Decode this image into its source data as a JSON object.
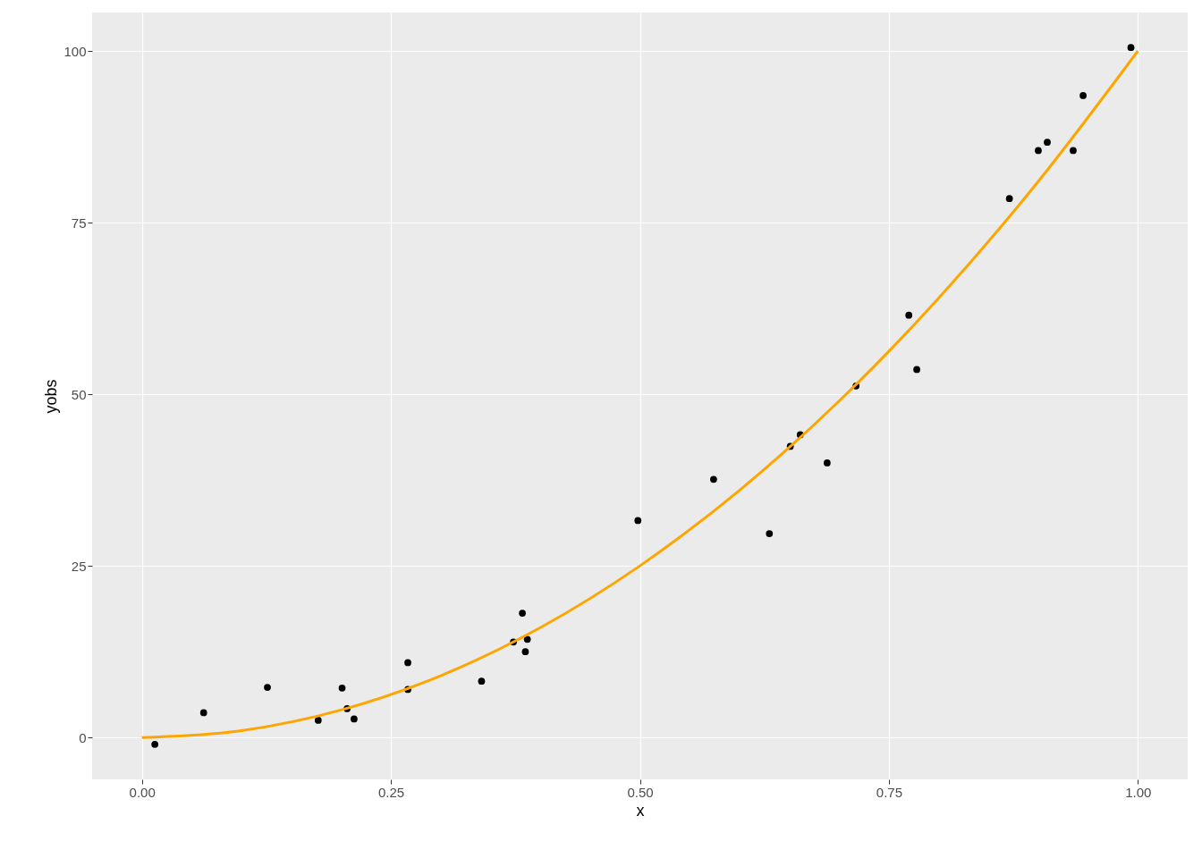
{
  "chart_data": {
    "type": "scatter",
    "xlabel": "x",
    "ylabel": "yobs",
    "xlim": [
      -0.05,
      1.05
    ],
    "ylim": [
      -6.1,
      105.6
    ],
    "xticks": [
      {
        "value": 0,
        "label": "0.00"
      },
      {
        "value": 0.25,
        "label": "0.25"
      },
      {
        "value": 0.5,
        "label": "0.50"
      },
      {
        "value": 0.75,
        "label": "0.75"
      },
      {
        "value": 1,
        "label": "1.00"
      }
    ],
    "yticks": [
      0,
      25,
      50,
      75,
      100
    ],
    "grid": true,
    "series": [
      {
        "type": "scatter",
        "marker": "circle",
        "color": "#000000",
        "x": [
          0.013,
          0.062,
          0.126,
          0.177,
          0.201,
          0.206,
          0.213,
          0.267,
          0.267,
          0.341,
          0.373,
          0.382,
          0.385,
          0.387,
          0.498,
          0.574,
          0.63,
          0.651,
          0.661,
          0.688,
          0.717,
          0.77,
          0.778,
          0.871,
          0.9,
          0.909,
          0.935,
          0.945,
          0.993
        ],
        "values": [
          -1.0,
          3.6,
          7.3,
          2.5,
          7.2,
          4.2,
          2.7,
          10.9,
          7.0,
          8.2,
          13.9,
          18.1,
          12.5,
          14.3,
          31.6,
          37.6,
          29.7,
          42.4,
          44.1,
          40.0,
          51.2,
          61.5,
          53.6,
          78.5,
          85.5,
          86.7,
          85.5,
          93.5,
          100.5
        ]
      },
      {
        "type": "line",
        "marker": "none",
        "color": "#ffa500",
        "x": [
          0,
          0.1,
          0.2,
          0.3,
          0.4,
          0.5,
          0.6,
          0.7,
          0.8,
          0.9,
          1.0
        ],
        "values": [
          0,
          1,
          4,
          9,
          16,
          25,
          36,
          49,
          64,
          81,
          100
        ]
      }
    ]
  }
}
